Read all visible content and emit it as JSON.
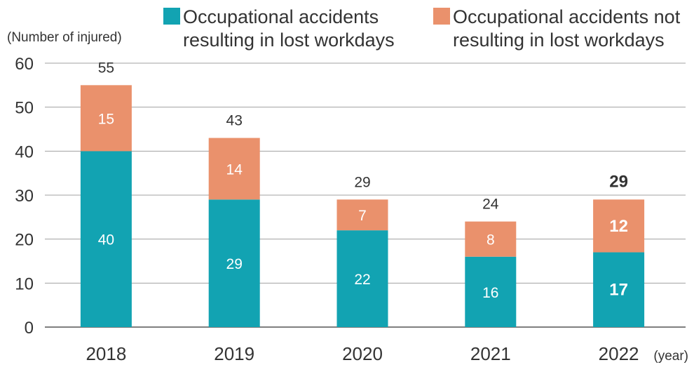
{
  "chart_data": {
    "type": "bar",
    "stacked": true,
    "categories": [
      "2018",
      "2019",
      "2020",
      "2021",
      "2022"
    ],
    "series": [
      {
        "name": "Occupational accidents resulting in lost workdays",
        "legend_lines": [
          "Occupational accidents",
          "resulting in lost workdays"
        ],
        "color": "#12A3B2",
        "values": [
          40,
          29,
          22,
          16,
          17
        ]
      },
      {
        "name": "Occupational accidents not resulting in lost workdays",
        "legend_lines": [
          "Occupational accidents not",
          "resulting in lost workdays"
        ],
        "color": "#EA916C",
        "values": [
          15,
          14,
          7,
          8,
          12
        ]
      }
    ],
    "totals": [
      55,
      43,
      29,
      24,
      29
    ],
    "emphasized_category": "2022",
    "ylabel": "(Number of injured)",
    "xunit": "(year)",
    "ylim": [
      0,
      60
    ],
    "yticks": [
      0,
      10,
      20,
      30,
      40,
      50,
      60
    ],
    "grid": true,
    "legend_position": "top"
  }
}
